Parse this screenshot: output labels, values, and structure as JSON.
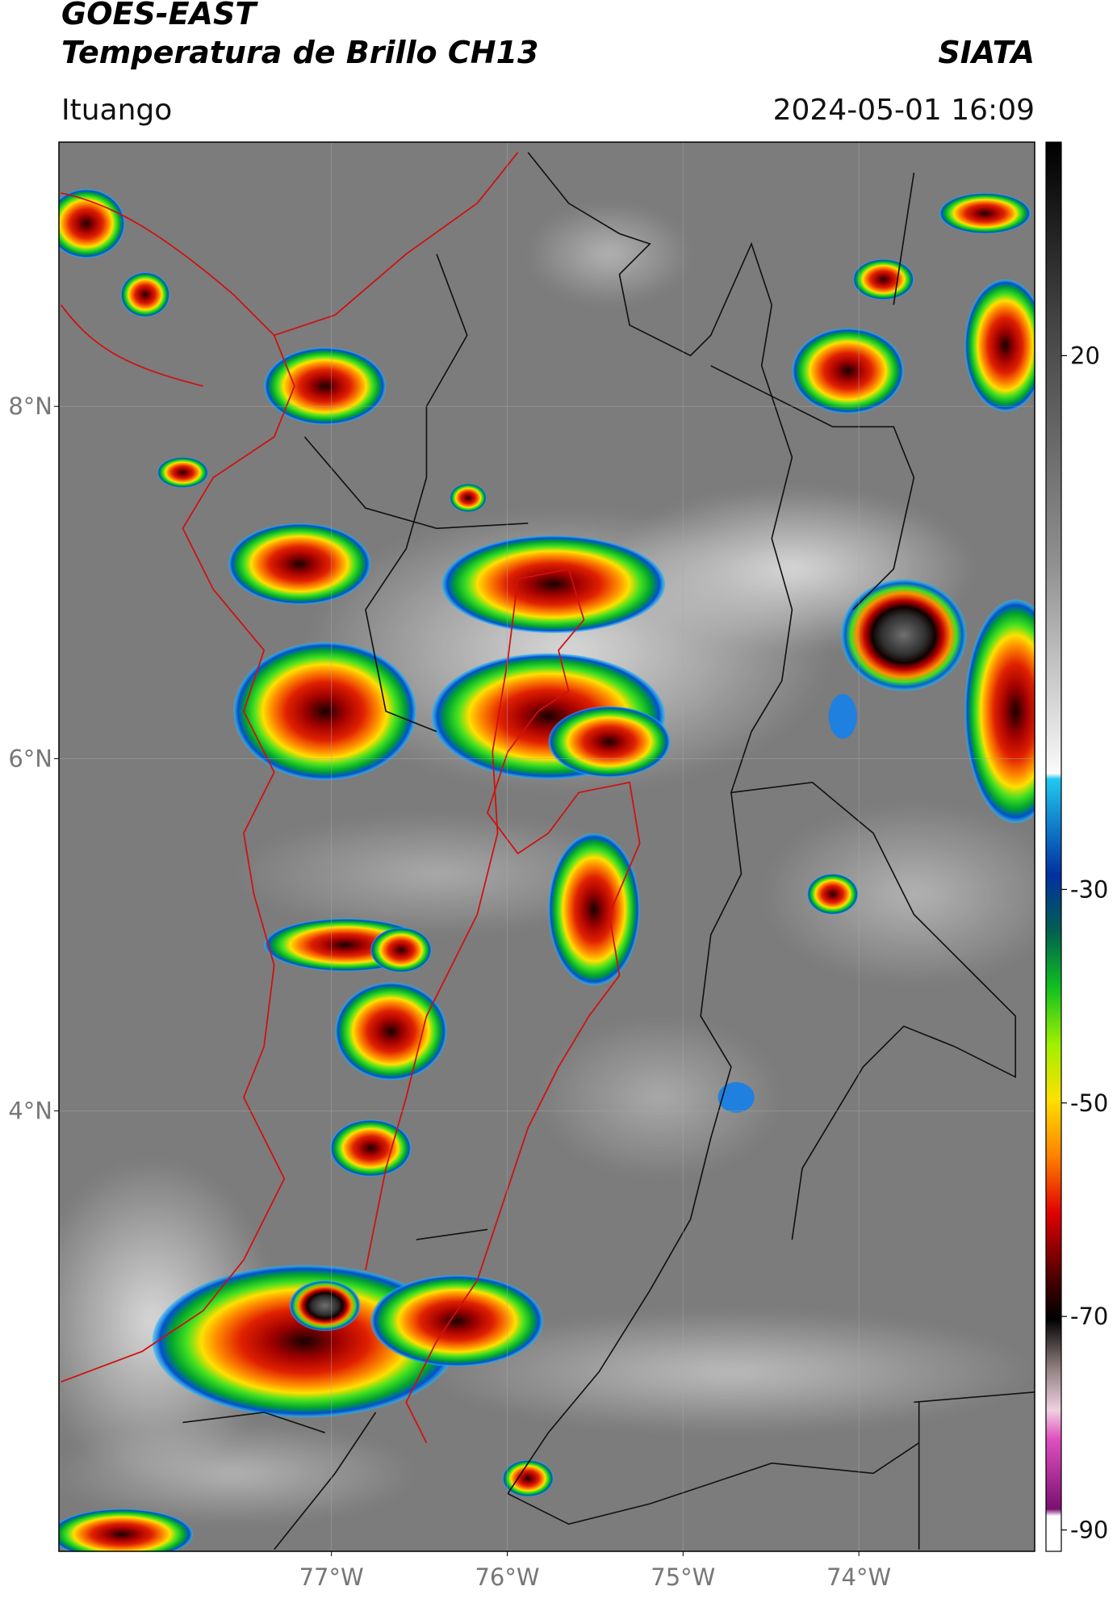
{
  "header": {
    "title": "GOES-EAST",
    "subtitle": "Temperatura de Brillo CH13",
    "brand": "SIATA",
    "location": "Ituango",
    "datetime": "2024-05-01 16:09"
  },
  "map": {
    "xlim": [
      -78.55,
      -73
    ],
    "ylim": [
      1.5,
      9.5
    ],
    "xticks": [
      {
        "value": -77,
        "label": "77°W"
      },
      {
        "value": -76,
        "label": "76°W"
      },
      {
        "value": -75,
        "label": "75°W"
      },
      {
        "value": -74,
        "label": "74°W"
      }
    ],
    "yticks": [
      {
        "value": 8,
        "label": "8°N"
      },
      {
        "value": 6,
        "label": "6°N"
      },
      {
        "value": 4,
        "label": "4°N"
      }
    ],
    "grid": true
  },
  "colorbar": {
    "lim": [
      -92,
      40
    ],
    "ticks": [
      20,
      -30,
      -50,
      -70,
      -90
    ]
  }
}
